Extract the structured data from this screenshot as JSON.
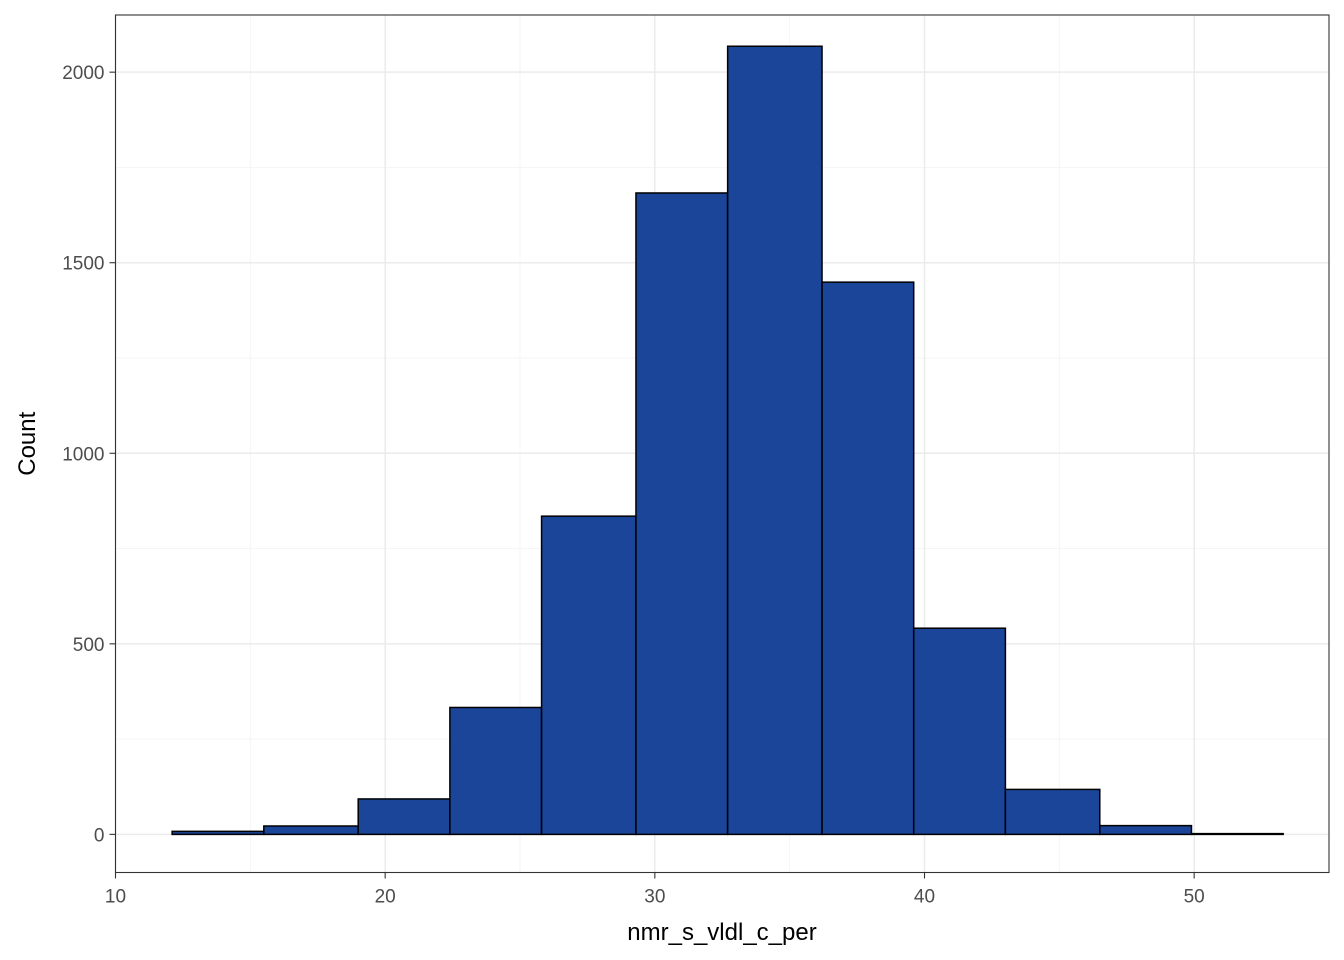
{
  "chart_data": {
    "type": "bar",
    "subtype": "histogram",
    "title": "",
    "xlabel": "nmr_s_vldl_c_per",
    "ylabel": "Count",
    "xlim": [
      10,
      55
    ],
    "ylim": [
      -100,
      2150
    ],
    "x_ticks": [
      10,
      20,
      30,
      40,
      50
    ],
    "y_ticks": [
      0,
      500,
      1000,
      1500,
      2000
    ],
    "grid": true,
    "theme": "bw",
    "colors": {
      "fill": "#1A4599",
      "outline": "#000000",
      "grid_major": "#EBEBEB",
      "grid_minor": "#F5F5F5",
      "panel_border": "#333333"
    },
    "bins": [
      {
        "x_start": 12.1,
        "x_end": 15.5,
        "count": 8
      },
      {
        "x_start": 15.5,
        "x_end": 19.0,
        "count": 22
      },
      {
        "x_start": 19.0,
        "x_end": 22.4,
        "count": 93
      },
      {
        "x_start": 22.4,
        "x_end": 25.8,
        "count": 333
      },
      {
        "x_start": 25.8,
        "x_end": 29.3,
        "count": 835
      },
      {
        "x_start": 29.3,
        "x_end": 32.7,
        "count": 1683
      },
      {
        "x_start": 32.7,
        "x_end": 36.2,
        "count": 2068
      },
      {
        "x_start": 36.2,
        "x_end": 39.6,
        "count": 1449
      },
      {
        "x_start": 39.6,
        "x_end": 43.0,
        "count": 541
      },
      {
        "x_start": 43.0,
        "x_end": 46.5,
        "count": 118
      },
      {
        "x_start": 46.5,
        "x_end": 49.9,
        "count": 23
      },
      {
        "x_start": 49.9,
        "x_end": 53.3,
        "count": 2
      }
    ]
  }
}
